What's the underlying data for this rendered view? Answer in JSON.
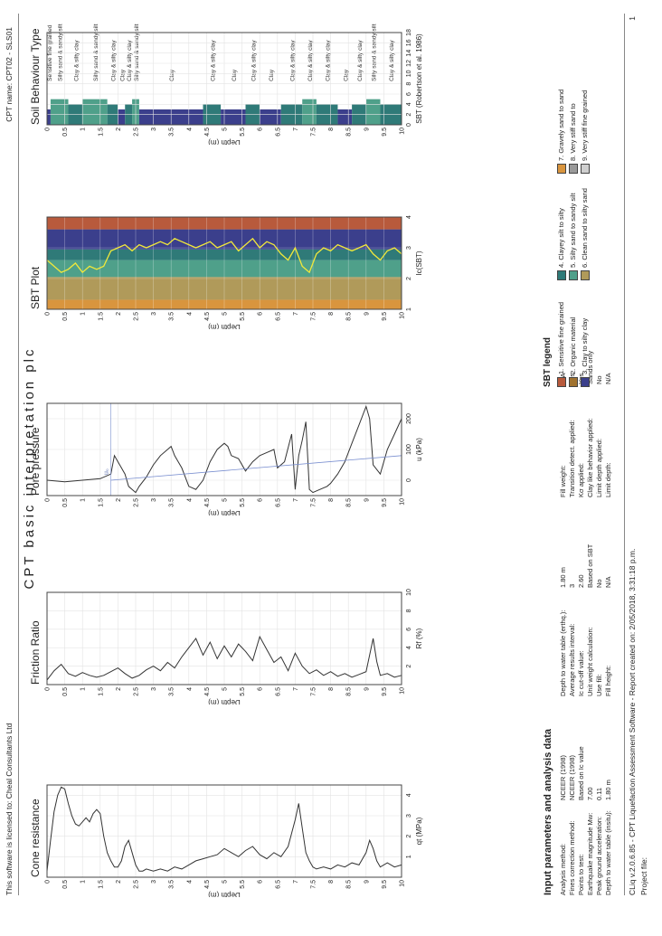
{
  "header": {
    "license": "This software is licensed to: Cheal Consultants Ltd",
    "cpt_name": "CPT name: CPT02 - SLS01",
    "main_title": "CPT basic interpretation plc"
  },
  "footer": {
    "software": "CLiq v.2.0.6.85 - CPT Liquefaction Assessment Software - Report created on: 2/05/2018, 3:31:18 p.m.",
    "project_file": "Project file:",
    "page": "1"
  },
  "inputs": {
    "title": "Input parameters and analysis data",
    "col1": [
      {
        "label": "Analysis method:",
        "value": "NCEER (1998)"
      },
      {
        "label": "Fines correction method:",
        "value": "NCEER (1998)"
      },
      {
        "label": "Points to test:",
        "value": "Based on Ic value"
      },
      {
        "label": "Earthquake magnitude Mw:",
        "value": "7.00"
      },
      {
        "label": "Peak ground acceleration:",
        "value": "0.11"
      },
      {
        "label": "Depth to water table (insitu):",
        "value": "1.80 m"
      }
    ],
    "col2": [
      {
        "label": "Depth to water table (erthq.):",
        "value": "1.80 m"
      },
      {
        "label": "Average results interval:",
        "value": "3"
      },
      {
        "label": "Ic cut-off value:",
        "value": "2.60"
      },
      {
        "label": "Unit weight calculation:",
        "value": "Based on SBT"
      },
      {
        "label": "Use fill:",
        "value": "No"
      },
      {
        "label": "Fill height:",
        "value": "N/A"
      }
    ],
    "col3": [
      {
        "label": "Fill weight:",
        "value": "N/A"
      },
      {
        "label": "Transition detect. applied:",
        "value": "Yes"
      },
      {
        "label": "Kσ applied:",
        "value": "Yes"
      },
      {
        "label": "Clay like behavior applied:",
        "value": "Sands only"
      },
      {
        "label": "Limit depth applied:",
        "value": "No"
      },
      {
        "label": "Limit depth:",
        "value": "N/A"
      }
    ]
  },
  "sbt_legend": {
    "title": "SBT legend",
    "items": [
      {
        "label": "1. Sensitive fine grained",
        "color": "#b85a3c"
      },
      {
        "label": "2. Organic material",
        "color": "#a0722f"
      },
      {
        "label": "3. Clay to silty clay",
        "color": "#3b3f8c"
      },
      {
        "label": "4. Clayey silt to silty",
        "color": "#2f7a78"
      },
      {
        "label": "5. Silty sand to sandy silt",
        "color": "#4fa08a"
      },
      {
        "label": "6. Clean sand to silty sand",
        "color": "#b09a5a"
      },
      {
        "label": "7. Gravely sand to sand",
        "color": "#d9953e"
      },
      {
        "label": "8. Very stiff sand to",
        "color": "#9a9a9a"
      },
      {
        "label": "9. Very stiff fine grained",
        "color": "#cfcfcf"
      }
    ]
  },
  "chart_data": [
    {
      "type": "line",
      "title": "Cone resistance",
      "xlabel": "qt (MPa)",
      "ylabel": "Depth (m)",
      "xlim": [
        0,
        4.5
      ],
      "ylim": [
        0,
        10
      ],
      "xticks": [
        "1",
        "2",
        "3",
        "4"
      ],
      "yticks": [
        "0",
        "0.5",
        "1",
        "1.5",
        "2",
        "2.5",
        "3",
        "3.5",
        "4",
        "4.5",
        "5",
        "5.5",
        "6",
        "6.5",
        "7",
        "7.5",
        "8",
        "8.5",
        "9",
        "9.5",
        "10"
      ],
      "series": [
        {
          "depth": [
            0.0,
            0.1,
            0.2,
            0.3,
            0.4,
            0.5,
            0.6,
            0.7,
            0.8,
            0.9,
            1.0,
            1.1,
            1.2,
            1.3,
            1.4,
            1.5,
            1.6,
            1.7,
            1.8,
            1.9,
            2.0,
            2.1,
            2.2,
            2.3,
            2.4,
            2.5,
            2.6,
            2.7,
            2.8,
            3.0,
            3.2,
            3.4,
            3.6,
            3.8,
            4.0,
            4.2,
            4.4,
            4.6,
            4.8,
            5.0,
            5.2,
            5.4,
            5.6,
            5.8,
            6.0,
            6.2,
            6.4,
            6.6,
            6.8,
            7.0,
            7.1,
            7.2,
            7.3,
            7.4,
            7.5,
            7.6,
            7.8,
            8.0,
            8.2,
            8.4,
            8.6,
            8.8,
            9.0,
            9.1,
            9.2,
            9.3,
            9.4,
            9.6,
            9.8,
            10.0
          ],
          "qt": [
            0.3,
            1.8,
            3.2,
            4.0,
            4.4,
            4.3,
            3.6,
            3.0,
            2.6,
            2.5,
            2.7,
            2.9,
            2.7,
            3.1,
            3.3,
            3.1,
            2.0,
            1.2,
            0.8,
            0.5,
            0.5,
            0.8,
            1.5,
            1.8,
            1.2,
            0.6,
            0.3,
            0.3,
            0.4,
            0.3,
            0.4,
            0.3,
            0.5,
            0.4,
            0.6,
            0.8,
            0.9,
            1.0,
            1.1,
            1.4,
            1.2,
            1.0,
            1.3,
            1.5,
            1.1,
            0.9,
            1.2,
            1.0,
            1.5,
            2.8,
            3.6,
            2.4,
            1.2,
            0.8,
            0.5,
            0.4,
            0.5,
            0.4,
            0.6,
            0.5,
            0.7,
            0.6,
            1.2,
            1.8,
            1.4,
            0.8,
            0.5,
            0.7,
            0.5,
            0.6
          ]
        }
      ]
    },
    {
      "type": "line",
      "title": "Friction Ratio",
      "xlabel": "Rf (%)",
      "ylabel": "Depth (m)",
      "xlim": [
        0,
        10
      ],
      "ylim": [
        0,
        10
      ],
      "xticks": [
        "2",
        "4",
        "6",
        "8",
        "10"
      ],
      "yticks": [
        "0",
        "0.5",
        "1",
        "1.5",
        "2",
        "2.5",
        "3",
        "3.5",
        "4",
        "4.5",
        "5",
        "5.5",
        "6",
        "6.5",
        "7",
        "7.5",
        "8",
        "8.5",
        "9",
        "9.5",
        "10"
      ],
      "series": [
        {
          "depth": [
            0.0,
            0.2,
            0.4,
            0.6,
            0.8,
            1.0,
            1.2,
            1.4,
            1.6,
            1.8,
            2.0,
            2.2,
            2.4,
            2.6,
            2.8,
            3.0,
            3.2,
            3.4,
            3.6,
            3.8,
            4.0,
            4.2,
            4.4,
            4.6,
            4.8,
            5.0,
            5.2,
            5.4,
            5.6,
            5.8,
            6.0,
            6.2,
            6.4,
            6.6,
            6.8,
            7.0,
            7.2,
            7.4,
            7.6,
            7.8,
            8.0,
            8.2,
            8.4,
            8.6,
            8.8,
            9.0,
            9.2,
            9.3,
            9.4,
            9.6,
            9.8,
            10.0
          ],
          "rf": [
            0.5,
            1.5,
            2.2,
            1.2,
            0.9,
            1.3,
            1.0,
            0.8,
            1.0,
            1.4,
            1.8,
            1.2,
            0.7,
            1.0,
            1.6,
            2.0,
            1.5,
            2.4,
            1.8,
            3.0,
            4.0,
            5.0,
            3.2,
            4.6,
            2.8,
            4.2,
            3.0,
            4.4,
            3.6,
            2.6,
            5.2,
            3.8,
            2.4,
            3.0,
            1.5,
            3.4,
            2.0,
            1.2,
            1.6,
            1.0,
            1.4,
            0.9,
            1.2,
            0.8,
            1.1,
            1.4,
            5.0,
            2.5,
            1.0,
            1.2,
            0.8,
            1.0
          ]
        }
      ]
    },
    {
      "type": "line",
      "title": "Pore pressure",
      "xlabel": "u (kPa)",
      "ylabel": "Depth (m)",
      "xlim": [
        -50,
        250
      ],
      "ylim": [
        0,
        10
      ],
      "xticks": [
        "0",
        "100",
        "200"
      ],
      "yticks": [
        "0",
        "0.5",
        "1",
        "1.5",
        "2",
        "2.5",
        "3",
        "3.5",
        "4",
        "4.5",
        "5",
        "5.5",
        "6",
        "6.5",
        "7",
        "7.5",
        "8",
        "8.5",
        "9",
        "9.5",
        "10"
      ],
      "annotation": "u₀",
      "series": [
        {
          "name": "u",
          "depth": [
            0.0,
            0.5,
            1.0,
            1.5,
            1.8,
            1.9,
            2.0,
            2.1,
            2.2,
            2.3,
            2.4,
            2.5,
            2.6,
            2.8,
            3.0,
            3.2,
            3.4,
            3.5,
            3.6,
            3.8,
            4.0,
            4.2,
            4.4,
            4.6,
            4.8,
            5.0,
            5.1,
            5.2,
            5.4,
            5.6,
            5.8,
            6.0,
            6.2,
            6.4,
            6.5,
            6.7,
            6.9,
            7.0,
            7.1,
            7.2,
            7.3,
            7.4,
            7.5,
            7.7,
            7.9,
            8.0,
            8.2,
            8.4,
            8.6,
            8.8,
            9.0,
            9.1,
            9.2,
            9.4,
            9.6,
            9.8,
            10.0
          ],
          "u": [
            0,
            -5,
            0,
            5,
            20,
            80,
            60,
            40,
            20,
            -20,
            -30,
            -40,
            -20,
            10,
            50,
            80,
            100,
            110,
            80,
            40,
            -20,
            -30,
            0,
            60,
            100,
            120,
            110,
            80,
            70,
            30,
            60,
            80,
            90,
            100,
            40,
            60,
            150,
            -30,
            80,
            130,
            190,
            -30,
            -40,
            -30,
            -20,
            -10,
            20,
            60,
            120,
            180,
            240,
            200,
            50,
            20,
            100,
            150,
            200
          ]
        },
        {
          "name": "u0",
          "depth": [
            1.8,
            10.0
          ],
          "u": [
            0,
            80
          ]
        }
      ]
    },
    {
      "type": "line",
      "title": "SBT Plot",
      "xlabel": "Ic(SBT)",
      "ylabel": "Depth (m)",
      "xlim": [
        1,
        4
      ],
      "ylim": [
        0,
        10
      ],
      "xticks": [
        "1",
        "2",
        "3",
        "4"
      ],
      "yticks": [
        "0",
        "0.5",
        "1",
        "1.5",
        "2",
        "2.5",
        "3",
        "3.5",
        "4",
        "4.5",
        "5",
        "5.5",
        "6",
        "6.5",
        "7",
        "7.5",
        "8",
        "8.5",
        "9",
        "9.5",
        "10"
      ],
      "series": [
        {
          "depth": [
            0.0,
            0.2,
            0.4,
            0.6,
            0.8,
            1.0,
            1.2,
            1.4,
            1.6,
            1.8,
            2.0,
            2.2,
            2.4,
            2.6,
            2.8,
            3.0,
            3.2,
            3.4,
            3.6,
            3.8,
            4.0,
            4.2,
            4.4,
            4.6,
            4.8,
            5.0,
            5.2,
            5.4,
            5.6,
            5.8,
            6.0,
            6.2,
            6.4,
            6.6,
            6.8,
            7.0,
            7.2,
            7.4,
            7.6,
            7.8,
            8.0,
            8.2,
            8.4,
            8.6,
            8.8,
            9.0,
            9.2,
            9.4,
            9.6,
            9.8,
            10.0
          ],
          "ic": [
            2.6,
            2.4,
            2.2,
            2.3,
            2.5,
            2.2,
            2.4,
            2.3,
            2.4,
            2.9,
            3.0,
            3.1,
            2.9,
            3.1,
            3.0,
            3.1,
            3.2,
            3.1,
            3.3,
            3.2,
            3.1,
            3.0,
            3.1,
            3.2,
            3.0,
            3.1,
            3.2,
            2.9,
            3.1,
            3.3,
            3.0,
            3.2,
            3.1,
            2.8,
            2.6,
            3.0,
            2.4,
            2.2,
            2.8,
            3.0,
            2.9,
            3.1,
            3.0,
            2.9,
            3.0,
            3.1,
            2.8,
            2.6,
            2.9,
            3.0,
            2.8
          ]
        }
      ]
    },
    {
      "type": "bar",
      "title": "Soil Behaviour Type",
      "xlabel": "SBT (Robertson et al. 1986)",
      "ylabel": "Depth (m)",
      "xlim": [
        0,
        18
      ],
      "ylim": [
        0,
        10
      ],
      "xticks": [
        "0",
        "2",
        "4",
        "6",
        "8",
        "10",
        "12",
        "14",
        "16",
        "18"
      ],
      "yticks": [
        "0",
        "0.5",
        "1",
        "1.5",
        "2",
        "2.5",
        "3",
        "3.5",
        "4",
        "4.5",
        "5",
        "5.5",
        "6",
        "6.5",
        "7",
        "7.5",
        "8",
        "8.5",
        "9",
        "9.5",
        "10"
      ],
      "layers": [
        {
          "top": 0.0,
          "bottom": 0.1,
          "sbt": 3,
          "label": "Sensitive fine grained"
        },
        {
          "top": 0.1,
          "bottom": 0.6,
          "sbt": 5,
          "label": "Silty sand & sandy silt"
        },
        {
          "top": 0.6,
          "bottom": 1.0,
          "sbt": 4,
          "label": "Clay & silty clay"
        },
        {
          "top": 1.0,
          "bottom": 1.7,
          "sbt": 5,
          "label": "Silty sand & sandy silt"
        },
        {
          "top": 1.7,
          "bottom": 2.0,
          "sbt": 4,
          "label": "Clay & silty clay"
        },
        {
          "top": 2.0,
          "bottom": 2.2,
          "sbt": 3,
          "label": "Clay"
        },
        {
          "top": 2.2,
          "bottom": 2.4,
          "sbt": 4,
          "label": "Clay & silty clay"
        },
        {
          "top": 2.4,
          "bottom": 2.6,
          "sbt": 5,
          "label": "Silty sand & sandy silt"
        },
        {
          "top": 2.6,
          "bottom": 4.4,
          "sbt": 3,
          "label": "Clay"
        },
        {
          "top": 4.4,
          "bottom": 4.9,
          "sbt": 4,
          "label": "Clay & silty clay"
        },
        {
          "top": 4.9,
          "bottom": 5.6,
          "sbt": 3,
          "label": "Clay"
        },
        {
          "top": 5.6,
          "bottom": 6.0,
          "sbt": 4,
          "label": "Clay & silty clay"
        },
        {
          "top": 6.0,
          "bottom": 6.6,
          "sbt": 3,
          "label": "Clay"
        },
        {
          "top": 6.6,
          "bottom": 7.2,
          "sbt": 4,
          "label": "Clay & silty clay"
        },
        {
          "top": 7.2,
          "bottom": 7.6,
          "sbt": 5,
          "label": "Clay & silty clay"
        },
        {
          "top": 7.6,
          "bottom": 8.2,
          "sbt": 4,
          "label": "Clay & silty clay"
        },
        {
          "top": 8.2,
          "bottom": 8.6,
          "sbt": 3,
          "label": "Clay"
        },
        {
          "top": 8.6,
          "bottom": 9.0,
          "sbt": 4,
          "label": "Clay & silty clay"
        },
        {
          "top": 9.0,
          "bottom": 9.4,
          "sbt": 5,
          "label": "Silty sand & sandy silt"
        },
        {
          "top": 9.4,
          "bottom": 10.0,
          "sbt": 4,
          "label": "Clay & silty clay"
        }
      ]
    }
  ]
}
